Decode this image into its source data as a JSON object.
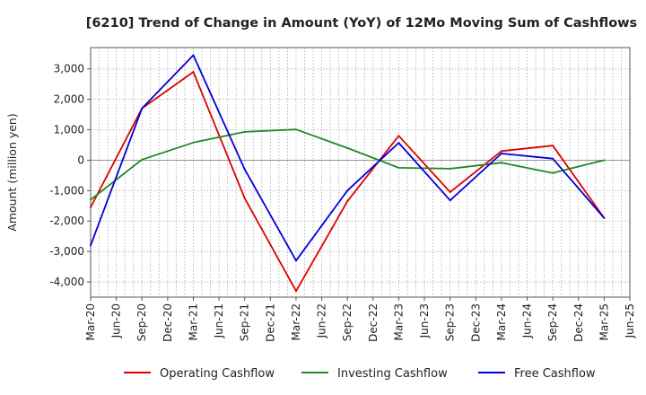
{
  "chart_data": {
    "type": "line",
    "title": "[6210]  Trend of Change in Amount (YoY) of 12Mo Moving Sum of Cashflows",
    "xlabel": "",
    "ylabel": "Amount (million yen)",
    "ylim": [
      -4500,
      3700
    ],
    "yticks": [
      3000,
      2000,
      1000,
      0,
      -1000,
      -2000,
      -3000,
      -4000
    ],
    "ytick_labels": [
      "3,000",
      "2,000",
      "1,000",
      "0",
      "-1,000",
      "-2,000",
      "-3,000",
      "-4,000"
    ],
    "x_tick_labels": [
      "Mar-20",
      "Jun-20",
      "Sep-20",
      "Dec-20",
      "Mar-21",
      "Jun-21",
      "Sep-21",
      "Dec-21",
      "Mar-22",
      "Jun-22",
      "Sep-22",
      "Dec-22",
      "Mar-23",
      "Jun-23",
      "Sep-23",
      "Dec-23",
      "Mar-24",
      "Jun-24",
      "Sep-24",
      "Dec-24",
      "Mar-25",
      "Jun-25"
    ],
    "legend_position": "bottom",
    "grid": true,
    "series": [
      {
        "name": "Operating Cashflow",
        "color": "#dd0000",
        "x": [
          0,
          2,
          4,
          6,
          8,
          10,
          12,
          14,
          16,
          18,
          20
        ],
        "values": [
          -1550,
          1700,
          2900,
          -1250,
          -4300,
          -1350,
          800,
          -1050,
          300,
          480,
          -1900
        ]
      },
      {
        "name": "Investing Cashflow",
        "color": "#228822",
        "x": [
          0,
          2,
          4,
          6,
          8,
          10,
          12,
          14,
          16,
          18,
          20
        ],
        "values": [
          -1300,
          20,
          580,
          930,
          1010,
          400,
          -250,
          -280,
          -80,
          -420,
          0
        ]
      },
      {
        "name": "Free Cashflow",
        "color": "#0000dd",
        "x": [
          0,
          2,
          4,
          6,
          8,
          10,
          12,
          14,
          16,
          18,
          20
        ],
        "values": [
          -2800,
          1700,
          3450,
          -300,
          -3300,
          -1000,
          570,
          -1320,
          220,
          50,
          -1900
        ]
      }
    ]
  }
}
